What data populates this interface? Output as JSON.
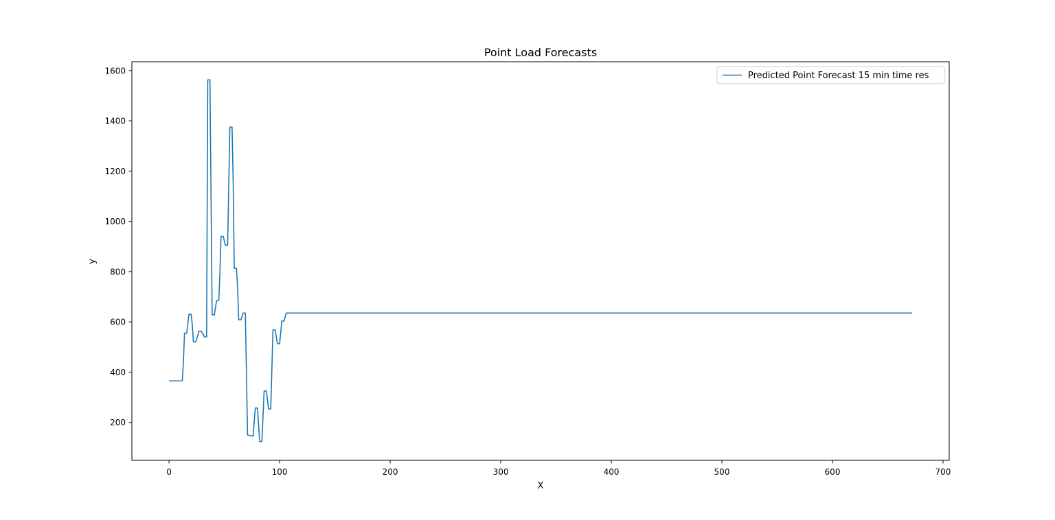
{
  "chart_data": {
    "type": "line",
    "title": "Point Load Forecasts",
    "xlabel": "X",
    "ylabel": "y",
    "xlim": [
      -33.6,
      705.6
    ],
    "ylim": [
      49,
      1635
    ],
    "xticks": [
      0,
      100,
      200,
      300,
      400,
      500,
      600,
      700
    ],
    "yticks": [
      200,
      400,
      600,
      800,
      1000,
      1200,
      1400,
      1600
    ],
    "grid": false,
    "legend_position": "top-right",
    "series": [
      {
        "name": "Predicted Point Forecast 15 min time res",
        "color": "#1f77b4",
        "points": [
          [
            0,
            365
          ],
          [
            12,
            365
          ],
          [
            13,
            440
          ],
          [
            14,
            555
          ],
          [
            16,
            555
          ],
          [
            18,
            630
          ],
          [
            20,
            630
          ],
          [
            21,
            590
          ],
          [
            22,
            520
          ],
          [
            24,
            520
          ],
          [
            26,
            545
          ],
          [
            27,
            563
          ],
          [
            29,
            563
          ],
          [
            31,
            550
          ],
          [
            32,
            540
          ],
          [
            34,
            540
          ],
          [
            35,
            1563
          ],
          [
            37,
            1563
          ],
          [
            38,
            1100
          ],
          [
            39,
            628
          ],
          [
            41,
            628
          ],
          [
            43,
            685
          ],
          [
            45,
            685
          ],
          [
            46,
            790
          ],
          [
            47,
            940
          ],
          [
            49,
            940
          ],
          [
            51,
            905
          ],
          [
            53,
            905
          ],
          [
            55,
            1375
          ],
          [
            57,
            1375
          ],
          [
            58,
            1160
          ],
          [
            59,
            813
          ],
          [
            61,
            813
          ],
          [
            62,
            740
          ],
          [
            63,
            608
          ],
          [
            65,
            608
          ],
          [
            67,
            635
          ],
          [
            69,
            635
          ],
          [
            70,
            400
          ],
          [
            71,
            150
          ],
          [
            76,
            145
          ],
          [
            78,
            257
          ],
          [
            80,
            257
          ],
          [
            82,
            124
          ],
          [
            84,
            124
          ],
          [
            86,
            325
          ],
          [
            88,
            325
          ],
          [
            90,
            253
          ],
          [
            92,
            253
          ],
          [
            94,
            568
          ],
          [
            96,
            568
          ],
          [
            98,
            513
          ],
          [
            100,
            513
          ],
          [
            102,
            603
          ],
          [
            104,
            603
          ],
          [
            106,
            635
          ],
          [
            672,
            635
          ]
        ]
      }
    ]
  }
}
